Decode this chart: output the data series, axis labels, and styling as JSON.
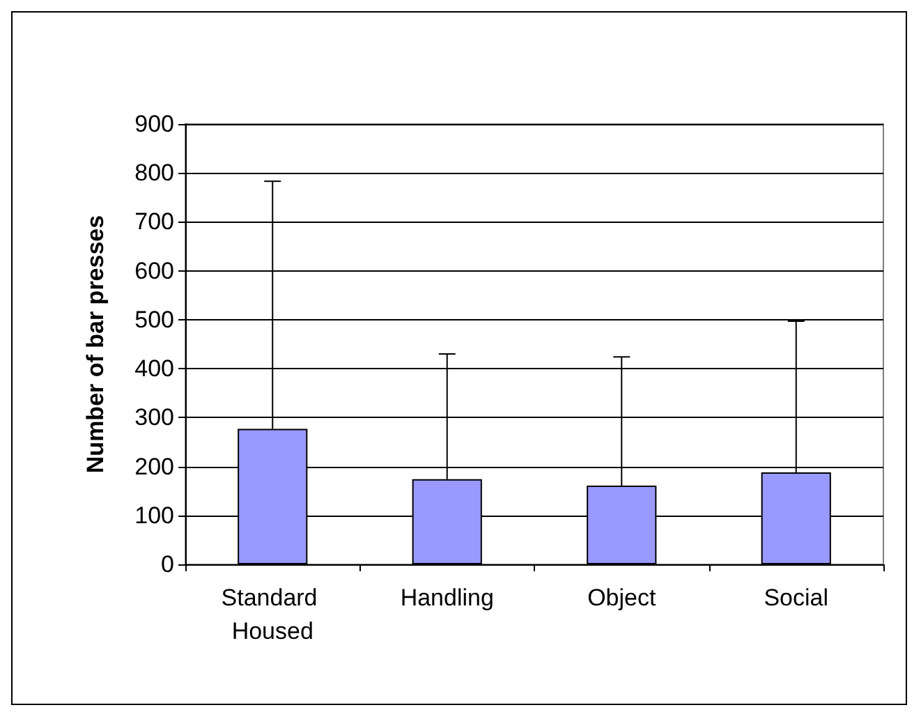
{
  "chart_data": {
    "type": "bar",
    "ylabel": "Number of bar presses",
    "categories": [
      "Standard Housed",
      "Handling",
      "Object",
      "Social"
    ],
    "values": [
      277,
      174,
      161,
      188
    ],
    "errors": [
      [
        277,
        783
      ],
      [
        174,
        430
      ],
      [
        161,
        424
      ],
      [
        188,
        497
      ]
    ],
    "color": "#9999ff",
    "ylim": [
      0,
      900
    ],
    "yticks": [
      0,
      100,
      200,
      300,
      400,
      500,
      600,
      700,
      800,
      900
    ],
    "grid": "y"
  }
}
